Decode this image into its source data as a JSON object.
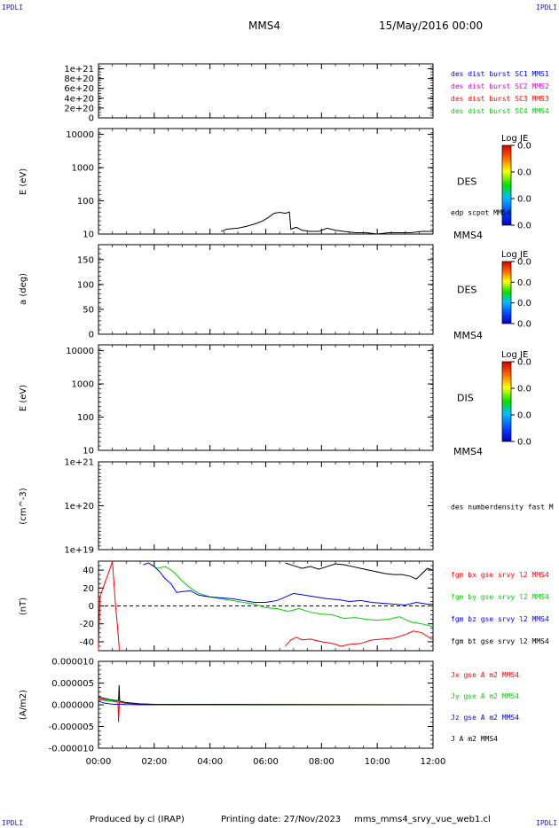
{
  "corners": {
    "tl": "IPDLI",
    "tr": "IPDLI",
    "bl": "IPDLI",
    "br": "IPDLI"
  },
  "header": {
    "spacecraft": "MMS4",
    "date": "15/May/2016 00:00"
  },
  "footer": {
    "producer": "Produced by cl (IRAP)",
    "printing": "Printing date: 27/Nov/2023",
    "file": "mms_mms4_srvy_vue_web1.cl"
  },
  "x_ticks": [
    "00:00",
    "02:00",
    "04:00",
    "06:00",
    "08:00",
    "10:00",
    "12:00"
  ],
  "colors": {
    "blue": "#0000ff",
    "magenta": "#e000e0",
    "red": "#ff0000",
    "green": "#00d000",
    "black": "#000000"
  },
  "chart_data": [
    {
      "id": "panel1",
      "type": "line",
      "y_ticks": [
        "1e+21",
        "8e+20",
        "6e+20",
        "4e+20",
        "2e+20",
        "0"
      ],
      "ylim": [
        0,
        1.1e+21
      ],
      "series": [
        {
          "name": "des dist burst SC1 MMS1",
          "color": "blue"
        },
        {
          "name": "des dist burst SC2 MMS2",
          "color": "magenta"
        },
        {
          "name": "des dist burst SC3 MMS3",
          "color": "red"
        },
        {
          "name": "des dist burst SC4 MMS4",
          "color": "green"
        }
      ],
      "reference_line": 0
    },
    {
      "id": "panel2",
      "type": "heatmap",
      "ylabel": "E (eV)",
      "yscale": "log",
      "ylim": [
        10,
        15000
      ],
      "y_ticks": [
        "10000",
        "1000",
        "100",
        "10"
      ],
      "instrument": "DES",
      "bottom_label": "MMS4",
      "colorbar": {
        "title": "Log JE",
        "ticks": [
          "0.0",
          "0.0",
          "0.0",
          "0.0"
        ]
      },
      "overlay": {
        "name": "edp scpot MMS4",
        "x_hours": [
          4.4,
          4.6,
          5.0,
          5.3,
          5.6,
          5.9,
          6.1,
          6.3,
          6.5,
          6.7,
          6.85,
          6.9,
          7.1,
          7.3,
          7.6,
          7.9,
          8.2,
          8.5,
          8.8,
          9.2,
          9.6,
          10.0,
          10.4,
          10.8,
          11.2,
          11.6,
          12.0
        ],
        "y": [
          12,
          14,
          15,
          17,
          20,
          25,
          32,
          42,
          45,
          42,
          46,
          14,
          16,
          13,
          12,
          12,
          15,
          13,
          12,
          11,
          11,
          10,
          11,
          11,
          11,
          12,
          12
        ]
      }
    },
    {
      "id": "panel3",
      "type": "heatmap",
      "ylabel": "a (deg)",
      "ylim": [
        0,
        180
      ],
      "y_ticks": [
        "150",
        "100",
        "50",
        "0"
      ],
      "instrument": "DES",
      "bottom_label": "MMS4",
      "colorbar": {
        "title": "Log JE",
        "ticks": [
          "0.0",
          "0.0",
          "0.0",
          "0.0"
        ]
      }
    },
    {
      "id": "panel4",
      "type": "heatmap",
      "ylabel": "E (eV)",
      "yscale": "log",
      "ylim": [
        10,
        15000
      ],
      "y_ticks": [
        "10000",
        "1000",
        "100",
        "10"
      ],
      "instrument": "DIS",
      "bottom_label": "MMS4",
      "colorbar": {
        "title": "Log JE",
        "ticks": [
          "0.0",
          "0.0",
          "0.0",
          "0.0"
        ]
      }
    },
    {
      "id": "panel5",
      "type": "line",
      "ylabel": "(cm^-3)",
      "yscale": "log",
      "ylim": [
        1e+19,
        1e+21
      ],
      "y_ticks": [
        "1e+21",
        "1e+20",
        "1e+19"
      ],
      "series": [
        {
          "name": "des numberdensity fast M",
          "color": "black"
        }
      ]
    },
    {
      "id": "panel6",
      "type": "line",
      "ylabel": "(nT)",
      "ylim": [
        -50,
        50
      ],
      "y_ticks": [
        "40",
        "20",
        "0",
        "-20",
        "-40"
      ],
      "reference_line": 0,
      "series": [
        {
          "name": "fgm bx gse srvy l2 MMS4",
          "color": "red",
          "x_hours": [
            0.0,
            0.05,
            0.45,
            0.5,
            0.6,
            0.7,
            0.75
          ],
          "y": [
            -50,
            10,
            45,
            50,
            5,
            -30,
            -50
          ],
          "segment2_x": [
            6.7,
            6.9,
            7.1,
            7.3,
            7.6,
            8.0,
            8.4,
            8.7,
            9.0,
            9.4,
            9.8,
            10.2,
            10.6,
            11.0,
            11.3,
            11.6,
            12.0
          ],
          "segment2_y": [
            -45,
            -38,
            -35,
            -38,
            -37,
            -40,
            -42,
            -45,
            -43,
            -42,
            -38,
            -37,
            -36,
            -32,
            -28,
            -30,
            -38
          ]
        },
        {
          "name": "fgm by gse srvy l2 MMS4",
          "color": "green",
          "x_hours": [
            1.9,
            2.1,
            2.4,
            2.7,
            3.0,
            3.3,
            3.6,
            4.0,
            4.4,
            4.8,
            5.2,
            5.6,
            6.0,
            6.4,
            6.8,
            7.2,
            7.6,
            8.0,
            8.4,
            8.8,
            9.2,
            9.6,
            10.0,
            10.4,
            10.8,
            11.2,
            11.6,
            12.0
          ],
          "y": [
            46,
            42,
            44,
            38,
            28,
            20,
            14,
            10,
            8,
            6,
            4,
            2,
            -2,
            -3,
            -6,
            -3,
            -7,
            -9,
            -10,
            -14,
            -13,
            -15,
            -16,
            -15,
            -12,
            -18,
            -20,
            -23
          ]
        },
        {
          "name": "fgm bz gse srvy l2 MMS4",
          "color": "blue",
          "x_hours": [
            1.6,
            1.8,
            2.0,
            2.2,
            2.4,
            2.6,
            2.8,
            3.0,
            3.3,
            3.6,
            4.0,
            4.4,
            4.8,
            5.2,
            5.6,
            6.0,
            6.4,
            6.7,
            7.0,
            7.4,
            7.8,
            8.2,
            8.6,
            9.0,
            9.4,
            9.8,
            10.2,
            10.6,
            11.0,
            11.4,
            11.8,
            12.0
          ],
          "y": [
            46,
            48,
            44,
            38,
            30,
            25,
            15,
            16,
            17,
            12,
            10,
            9,
            8,
            6,
            4,
            4,
            6,
            10,
            14,
            12,
            10,
            8,
            7,
            5,
            6,
            4,
            3,
            2,
            1,
            4,
            2,
            2
          ]
        },
        {
          "name": "fgm bt gse srvy l2 MMS4",
          "color": "black",
          "x_hours": [
            6.7,
            7.0,
            7.3,
            7.6,
            7.9,
            8.2,
            8.5,
            8.8,
            9.1,
            9.4,
            9.7,
            10.0,
            10.3,
            10.6,
            10.9,
            11.2,
            11.4,
            11.6,
            11.8,
            12.0
          ],
          "y": [
            48,
            45,
            42,
            44,
            41,
            44,
            47,
            46,
            44,
            42,
            40,
            38,
            36,
            35,
            35,
            33,
            30,
            36,
            42,
            40
          ]
        }
      ]
    },
    {
      "id": "panel7",
      "type": "line",
      "ylabel": "(A/m2)",
      "ylim": [
        -1e-05,
        1e-05
      ],
      "y_ticks": [
        "0.000010",
        "0.000005",
        "0.000000",
        "-0.000005",
        "-0.000010"
      ],
      "series": [
        {
          "name": "Jx gse A m2 MMS4",
          "color": "red",
          "x_hours": [
            0.0,
            0.2,
            0.4,
            0.6,
            0.7,
            0.72,
            0.75,
            0.8,
            1.0,
            1.5,
            2.0,
            12.0
          ],
          "y": [
            1.5e-06,
            1.2e-06,
            9e-07,
            7e-07,
            6e-07,
            -4e-06,
            6e-07,
            5e-07,
            3e-07,
            1e-07,
            5e-08,
            0.0
          ]
        },
        {
          "name": "Jy gse A m2 MMS4",
          "color": "green",
          "x_hours": [
            0.0,
            0.2,
            0.4,
            0.6,
            0.8,
            1.0,
            1.5,
            2.0,
            12.0
          ],
          "y": [
            1.2e-06,
            1e-06,
            9e-07,
            8e-07,
            7e-07,
            5e-07,
            2e-07,
            1e-07,
            0.0
          ]
        },
        {
          "name": "Jz gse A m2 MMS4",
          "color": "blue",
          "x_hours": [
            0.0,
            0.2,
            0.4,
            0.6,
            0.8,
            1.0,
            1.5,
            2.0,
            12.0
          ],
          "y": [
            8e-07,
            4e-07,
            2e-07,
            1e-07,
            1e-07,
            5e-08,
            0.0,
            0.0,
            0.0
          ]
        },
        {
          "name": "J A m2 MMS4",
          "color": "black",
          "x_hours": [
            0.0,
            0.2,
            0.4,
            0.6,
            0.72,
            0.74,
            0.76,
            0.8,
            1.0,
            1.5,
            2.0,
            12.0
          ],
          "y": [
            1.8e-06,
            1.5e-06,
            1.2e-06,
            1e-06,
            1e-06,
            4.5e-06,
            9e-07,
            8e-07,
            5e-07,
            2e-07,
            1e-07,
            0.0
          ]
        }
      ]
    }
  ]
}
